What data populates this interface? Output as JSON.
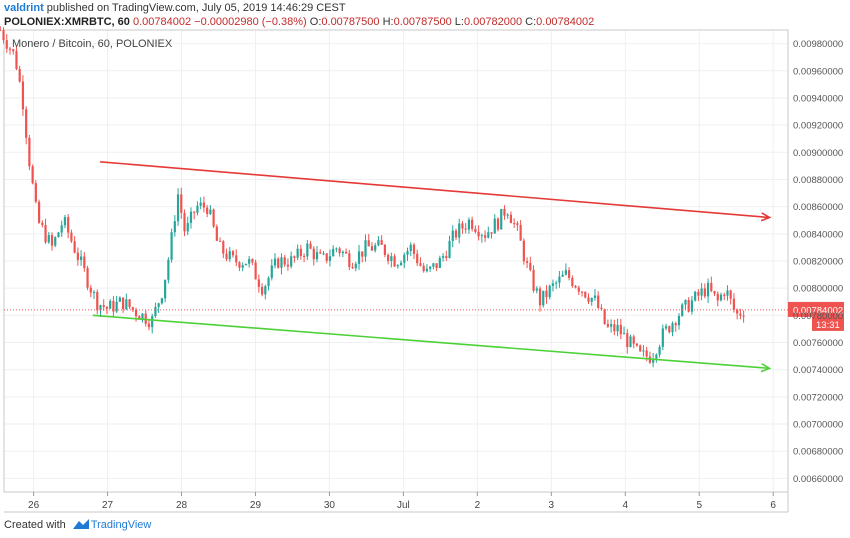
{
  "header": {
    "author": "valdrint",
    "published_text": "published on TradingView.com, July 05, 2019 14:46:29 CEST",
    "symbol": "POLONIEX:XMRBTC, 60",
    "last": "0.00784002",
    "change": "−0.00002980 (−0.38%)",
    "open_label": "O:",
    "open": "0.00787500",
    "high_label": "H:",
    "high": "0.00787500",
    "low_label": "L:",
    "low": "0.00782000",
    "close_label": "C:",
    "close": "0.00784002"
  },
  "footer": {
    "created_with": "Created with",
    "brand": "TradingView"
  },
  "colors": {
    "up": "#26a69a",
    "down": "#ef5350",
    "resistance": "#e53935",
    "support": "#4cd137",
    "price_line": "#ef5350"
  },
  "chart_data": {
    "type": "candlestick",
    "title": "Monero / Bitcoin, 60, POLONIEX",
    "x_ticks": [
      "26",
      "27",
      "28",
      "29",
      "30",
      "Jul",
      "2",
      "3",
      "4",
      "5",
      "6"
    ],
    "x_range": [
      25.6,
      6.2
    ],
    "ylim": [
      0.0065,
      0.0099
    ],
    "y_ticks": [
      "0.00980000",
      "0.00960000",
      "0.00940000",
      "0.00920000",
      "0.00900000",
      "0.00880000",
      "0.00860000",
      "0.00840000",
      "0.00820000",
      "0.00800000",
      "0.00780000",
      "0.00760000",
      "0.00740000",
      "0.00720000",
      "0.00700000",
      "0.00680000",
      "0.00660000"
    ],
    "current_price": 0.00784002,
    "current_price_label": "0.00784002",
    "countdown_label": "13:31",
    "trend_lines": [
      {
        "name": "resistance",
        "x0": 26.9,
        "y0": 0.00893,
        "x1": 5.95,
        "y1": 0.00852,
        "arrow": true
      },
      {
        "name": "support",
        "x0": 26.8,
        "y0": 0.0078,
        "x1": 5.95,
        "y1": 0.00741,
        "arrow": true
      }
    ],
    "price_path": [
      [
        25.55,
        0.0099
      ],
      [
        25.75,
        0.0097
      ],
      [
        25.85,
        0.0094
      ],
      [
        25.95,
        0.0089
      ],
      [
        26.05,
        0.0085
      ],
      [
        26.15,
        0.0084
      ],
      [
        26.25,
        0.0083
      ],
      [
        26.4,
        0.0085
      ],
      [
        26.55,
        0.0083
      ],
      [
        26.7,
        0.0081
      ],
      [
        26.85,
        0.0079
      ],
      [
        27.0,
        0.00785
      ],
      [
        27.2,
        0.0079
      ],
      [
        27.4,
        0.00782
      ],
      [
        27.6,
        0.00776
      ],
      [
        27.75,
        0.008
      ],
      [
        27.85,
        0.0083
      ],
      [
        27.95,
        0.0087
      ],
      [
        28.05,
        0.0084
      ],
      [
        28.2,
        0.0086
      ],
      [
        28.35,
        0.0086
      ],
      [
        28.5,
        0.0083
      ],
      [
        28.7,
        0.0082
      ],
      [
        28.9,
        0.0082
      ],
      [
        29.1,
        0.008
      ],
      [
        29.3,
        0.0082
      ],
      [
        29.5,
        0.0082
      ],
      [
        29.7,
        0.0083
      ],
      [
        29.9,
        0.0082
      ],
      [
        30.1,
        0.0083
      ],
      [
        30.3,
        0.0082
      ],
      [
        30.5,
        0.0083
      ],
      [
        30.7,
        0.0083
      ],
      [
        30.9,
        0.0082
      ],
      [
        31.1,
        0.0083
      ],
      [
        31.3,
        0.0081
      ],
      [
        31.5,
        0.0082
      ],
      [
        31.7,
        0.0084
      ],
      [
        31.9,
        0.0085
      ],
      [
        32.1,
        0.0084
      ],
      [
        32.3,
        0.0085
      ],
      [
        32.4,
        0.0086
      ],
      [
        32.55,
        0.0084
      ],
      [
        32.7,
        0.0081
      ],
      [
        32.85,
        0.0079
      ],
      [
        33.0,
        0.008
      ],
      [
        33.2,
        0.0081
      ],
      [
        33.4,
        0.008
      ],
      [
        33.6,
        0.0079
      ],
      [
        33.75,
        0.0077
      ],
      [
        33.9,
        0.0077
      ],
      [
        34.05,
        0.0076
      ],
      [
        34.2,
        0.0075
      ],
      [
        34.35,
        0.0075
      ],
      [
        34.5,
        0.00765
      ],
      [
        34.7,
        0.0078
      ],
      [
        34.9,
        0.0079
      ],
      [
        35.1,
        0.008
      ],
      [
        35.25,
        0.0079
      ],
      [
        35.35,
        0.008
      ],
      [
        35.5,
        0.0078
      ],
      [
        35.6,
        0.00784
      ]
    ]
  }
}
